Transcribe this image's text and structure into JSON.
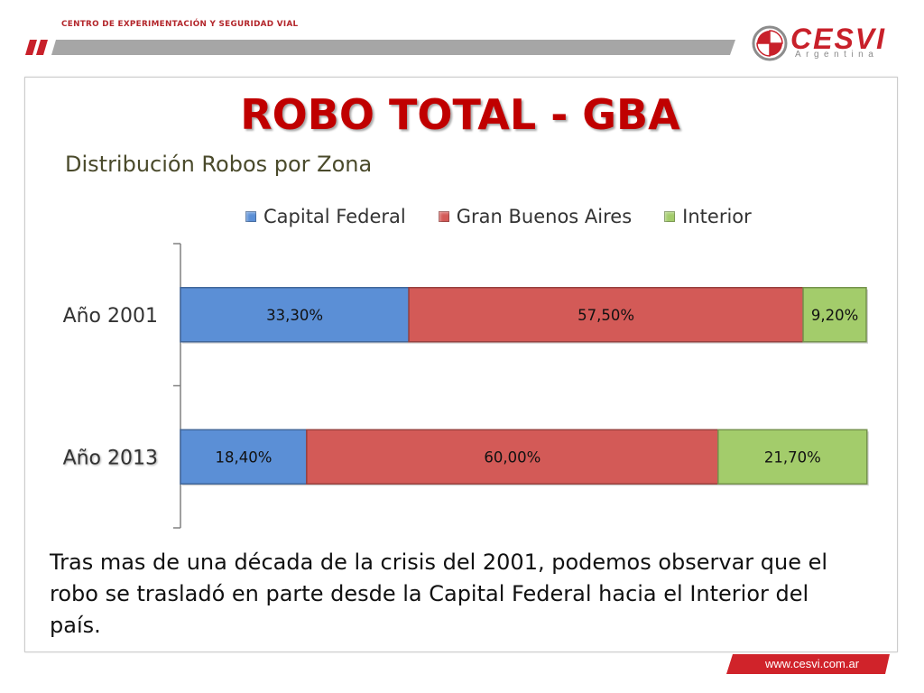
{
  "header": {
    "org_name": "CENTRO DE EXPERIMENTACIÓN Y SEGURIDAD VIAL"
  },
  "logo": {
    "name": "CESVI",
    "country": "Argentina"
  },
  "slide": {
    "title": "ROBO TOTAL - GBA",
    "body": "Tras mas de una década de la crisis del 2001, podemos observar que el robo se trasladó en parte desde la Capital Federal hacia el Interior del país."
  },
  "footer": {
    "url": "www.cesvi.com.ar"
  },
  "colors": {
    "brand_red": "#c00000",
    "header_red": "#c8202a",
    "header_gray": "#a6a6a6"
  },
  "chart_data": {
    "type": "bar",
    "orientation": "horizontal",
    "stacked": true,
    "title": "Distribución Robos por Zona",
    "xlabel": "",
    "ylabel": "",
    "xlim": [
      0,
      100
    ],
    "grid": false,
    "legend": "top",
    "categories": [
      "Año 2001",
      "Año 2013"
    ],
    "series": [
      {
        "name": "Capital Federal",
        "color": "#5b8fd6",
        "values": [
          33.3,
          18.4
        ],
        "labels": [
          "33,30%",
          "18,40%"
        ]
      },
      {
        "name": "Gran Buenos Aires",
        "color": "#d35a57",
        "values": [
          57.5,
          60.0
        ],
        "labels": [
          "57,50%",
          "60,00%"
        ]
      },
      {
        "name": "Interior",
        "color": "#a3cc6b",
        "values": [
          9.2,
          21.7
        ],
        "labels": [
          "9,20%",
          "21,70%"
        ]
      }
    ]
  }
}
